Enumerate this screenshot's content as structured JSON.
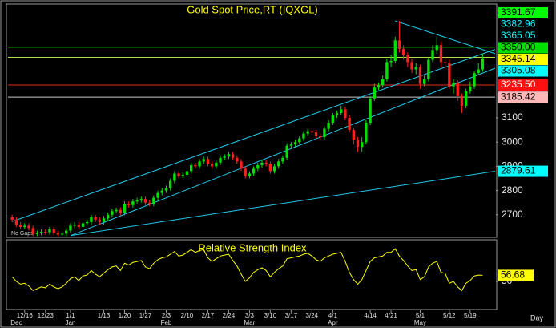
{
  "chart_data": [
    {
      "type": "candlestick",
      "title": "Gold Spot Price,RT (IQXGL)",
      "note": "No Gaps",
      "xlim": [
        -1,
        116
      ],
      "ylim": [
        2610,
        3560
      ],
      "yticks": [
        2700,
        2800,
        2900,
        3000,
        3100
      ],
      "up_color": "#00e000",
      "down_color": "#ff2020",
      "last_color": "#ffff00",
      "last_text_color": "#000000",
      "open": [
        2690,
        2680,
        2660,
        2650,
        2655,
        2645,
        2620,
        2625,
        2630,
        2628,
        2640,
        2625,
        2618,
        2622,
        2635,
        2655,
        2660,
        2650,
        2665,
        2670,
        2690,
        2680,
        2670,
        2685,
        2700,
        2715,
        2720,
        2708,
        2745,
        2740,
        2755,
        2760,
        2765,
        2750,
        2745,
        2770,
        2790,
        2800,
        2810,
        2840,
        2870,
        2860,
        2865,
        2880,
        2905,
        2900,
        2920,
        2930,
        2910,
        2900,
        2915,
        2935,
        2940,
        2950,
        2935,
        2920,
        2890,
        2860,
        2870,
        2890,
        2905,
        2915,
        2910,
        2880,
        2900,
        2920,
        2935,
        2985,
        2990,
        3000,
        3015,
        3035,
        3045,
        3040,
        3025,
        3020,
        3055,
        3080,
        3110,
        3120,
        3135,
        3100,
        3050,
        3010,
        2980,
        3000,
        3080,
        3180,
        3225,
        3235,
        3260,
        3330,
        3335,
        3420,
        3385,
        3360,
        3330,
        3300,
        3310,
        3240,
        3260,
        3340,
        3380,
        3400,
        3330,
        3325,
        3230,
        3245,
        3190,
        3150,
        3210,
        3230,
        3285,
        3300
      ],
      "high": [
        2700,
        2690,
        2670,
        2665,
        2665,
        2655,
        2635,
        2640,
        2640,
        2650,
        2650,
        2635,
        2632,
        2645,
        2665,
        2670,
        2670,
        2675,
        2680,
        2700,
        2700,
        2690,
        2695,
        2710,
        2725,
        2730,
        2730,
        2755,
        2755,
        2765,
        2770,
        2775,
        2775,
        2760,
        2780,
        2800,
        2810,
        2820,
        2850,
        2880,
        2880,
        2875,
        2890,
        2915,
        2915,
        2930,
        2940,
        2940,
        2920,
        2925,
        2945,
        2950,
        2960,
        2960,
        2945,
        2930,
        2900,
        2880,
        2900,
        2915,
        2925,
        2925,
        2920,
        2910,
        2930,
        2945,
        2995,
        3000,
        3010,
        3025,
        3045,
        3055,
        3055,
        3050,
        3035,
        3065,
        3090,
        3120,
        3130,
        3150,
        3145,
        3110,
        3060,
        3020,
        3020,
        3090,
        3190,
        3240,
        3245,
        3275,
        3345,
        3360,
        3435,
        3500,
        3400,
        3370,
        3345,
        3325,
        3320,
        3275,
        3350,
        3400,
        3435,
        3415,
        3350,
        3340,
        3260,
        3255,
        3200,
        3220,
        3250,
        3295,
        3325,
        3365
      ],
      "low": [
        2670,
        2650,
        2640,
        2640,
        2635,
        2612,
        2612,
        2615,
        2618,
        2618,
        2615,
        2612,
        2612,
        2612,
        2625,
        2645,
        2640,
        2640,
        2655,
        2660,
        2670,
        2660,
        2660,
        2675,
        2690,
        2705,
        2698,
        2698,
        2730,
        2730,
        2745,
        2750,
        2740,
        2735,
        2735,
        2760,
        2780,
        2790,
        2800,
        2830,
        2850,
        2850,
        2855,
        2870,
        2890,
        2890,
        2910,
        2900,
        2890,
        2890,
        2905,
        2925,
        2930,
        2925,
        2910,
        2880,
        2850,
        2850,
        2860,
        2880,
        2895,
        2900,
        2870,
        2870,
        2890,
        2910,
        2925,
        2975,
        2980,
        2990,
        3005,
        3025,
        3030,
        3015,
        3010,
        3010,
        3045,
        3070,
        3100,
        3110,
        3090,
        3040,
        2990,
        2960,
        2960,
        2990,
        3070,
        3170,
        3215,
        3225,
        3250,
        3310,
        3325,
        3370,
        3340,
        3310,
        3285,
        3280,
        3220,
        3230,
        3250,
        3330,
        3365,
        3310,
        3300,
        3220,
        3200,
        3170,
        3120,
        3140,
        3200,
        3220,
        3275,
        3290
      ],
      "close": [
        2680,
        2660,
        2650,
        2655,
        2645,
        2620,
        2625,
        2630,
        2628,
        2640,
        2625,
        2618,
        2622,
        2635,
        2655,
        2660,
        2650,
        2665,
        2670,
        2690,
        2680,
        2670,
        2685,
        2700,
        2715,
        2720,
        2708,
        2745,
        2740,
        2755,
        2760,
        2765,
        2750,
        2745,
        2770,
        2790,
        2800,
        2810,
        2840,
        2870,
        2860,
        2865,
        2880,
        2905,
        2900,
        2920,
        2930,
        2910,
        2900,
        2915,
        2935,
        2940,
        2950,
        2935,
        2920,
        2890,
        2860,
        2870,
        2890,
        2905,
        2915,
        2910,
        2880,
        2900,
        2920,
        2935,
        2985,
        2990,
        3000,
        3015,
        3035,
        3045,
        3040,
        3025,
        3020,
        3055,
        3080,
        3110,
        3120,
        3135,
        3100,
        3050,
        3010,
        2980,
        3000,
        3080,
        3180,
        3225,
        3235,
        3260,
        3330,
        3335,
        3420,
        3385,
        3360,
        3330,
        3300,
        3310,
        3240,
        3260,
        3340,
        3380,
        3400,
        3330,
        3325,
        3230,
        3245,
        3190,
        3150,
        3210,
        3230,
        3285,
        3300,
        3345.14
      ],
      "levels": [
        {
          "price": 3391.67,
          "color": "#00c000",
          "tag_color": "#00ff00",
          "text_color": "#000000"
        },
        {
          "price": {
            "value": 3350,
            "label": "3350.00"
          },
          "color": "#b0e040",
          "tag_color": "#00e000",
          "text_color": "#000000"
        },
        {
          "price": {
            "value": 3235.5,
            "label": "3235.50"
          },
          "color": "#e03020",
          "tag_color": "#ff1010",
          "text_color": "#ffffff"
        },
        {
          "price": 3185.42,
          "color": "#c8c8c8",
          "tag_color": "#ffb8b8",
          "text_color": "#000000"
        }
      ],
      "trendlines": [
        {
          "x": [
            0,
            116
          ],
          "y": [
            2672,
            3382.96
          ],
          "color": "#20c8e8",
          "tag_color": "#000000",
          "text_color": "#00ffff"
        },
        {
          "x": [
            92,
            116
          ],
          "y": [
            3500,
            3365.05
          ],
          "color": "#20c8e8",
          "tag_color": "#000000",
          "text_color": "#00ffff"
        },
        {
          "x": [
            14,
            116
          ],
          "y": [
            2614,
            3305.08
          ],
          "color": "#20c8e8",
          "tag_color": "#00ffff",
          "text_color": "#000000"
        },
        {
          "x": [
            14,
            116
          ],
          "y": [
            2614,
            2879.61
          ],
          "color": "#20c8e8",
          "tag_color": "#00ffff",
          "text_color": "#000000"
        }
      ]
    },
    {
      "type": "line",
      "title": "Relative Strength Index",
      "color": "#ffff00",
      "xlim": [
        -1,
        116
      ],
      "ylim": [
        20,
        95
      ],
      "yticks": [
        50
      ],
      "x_label": "Day",
      "values": [
        55,
        50,
        47,
        48,
        45,
        40,
        42,
        44,
        43,
        47,
        44,
        42,
        44,
        48,
        53,
        55,
        51,
        56,
        57,
        62,
        58,
        55,
        59,
        63,
        66,
        67,
        62,
        70,
        68,
        71,
        72,
        73,
        66,
        64,
        70,
        74,
        76,
        77,
        80,
        83,
        78,
        79,
        82,
        85,
        82,
        84,
        85,
        76,
        72,
        75,
        78,
        79,
        80,
        73,
        67,
        58,
        50,
        54,
        60,
        63,
        65,
        62,
        55,
        60,
        64,
        67,
        75,
        76,
        77,
        78,
        80,
        81,
        78,
        74,
        72,
        76,
        78,
        80,
        81,
        82,
        72,
        60,
        52,
        47,
        52,
        62,
        72,
        76,
        77,
        78,
        82,
        82,
        86,
        78,
        73,
        67,
        62,
        63,
        52,
        55,
        66,
        70,
        72,
        60,
        59,
        48,
        50,
        44,
        40,
        48,
        51,
        56,
        57,
        56.68
      ],
      "xticks": [
        {
          "value": 3,
          "label": "12/16"
        },
        {
          "value": 8,
          "label": "12/23"
        },
        {
          "value": 14,
          "label": "1/1"
        },
        {
          "value": 22,
          "label": "1/13"
        },
        {
          "value": 27,
          "label": "1/20"
        },
        {
          "value": 32,
          "label": "1/27"
        },
        {
          "value": 37,
          "label": "2/3"
        },
        {
          "value": 42,
          "label": "2/10"
        },
        {
          "value": 47,
          "label": "2/17"
        },
        {
          "value": 52,
          "label": "2/24"
        },
        {
          "value": 57,
          "label": "3/3"
        },
        {
          "value": 62,
          "label": "3/10"
        },
        {
          "value": 67,
          "label": "3/17"
        },
        {
          "value": 72,
          "label": "3/24"
        },
        {
          "value": 77,
          "label": "4/1"
        },
        {
          "value": 86,
          "label": "4/14"
        },
        {
          "value": 91,
          "label": "4/21"
        },
        {
          "value": 98,
          "label": "5/1"
        },
        {
          "value": 105,
          "label": "5/12"
        },
        {
          "value": 110,
          "label": "5/19"
        }
      ],
      "month_labels": [
        {
          "value": 1,
          "label": "Dec"
        },
        {
          "value": 14,
          "label": "Jan"
        },
        {
          "value": 37,
          "label": "Feb"
        },
        {
          "value": 57,
          "label": "Mar"
        },
        {
          "value": 77,
          "label": "Apr"
        },
        {
          "value": 98,
          "label": "May"
        }
      ]
    }
  ]
}
